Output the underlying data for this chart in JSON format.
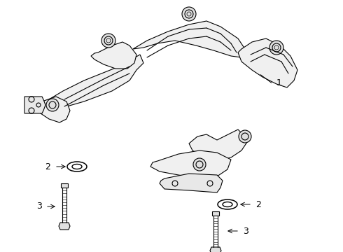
{
  "title": "",
  "background_color": "#ffffff",
  "line_color": "#000000",
  "line_width": 0.8,
  "label_1": "1",
  "label_2": "2",
  "label_3": "3",
  "label_fontsize": 9,
  "fig_width": 4.9,
  "fig_height": 3.6,
  "dpi": 100,
  "annotation_arrow_color": "#000000",
  "part_color": "#ffffff",
  "part_edge_color": "#000000"
}
